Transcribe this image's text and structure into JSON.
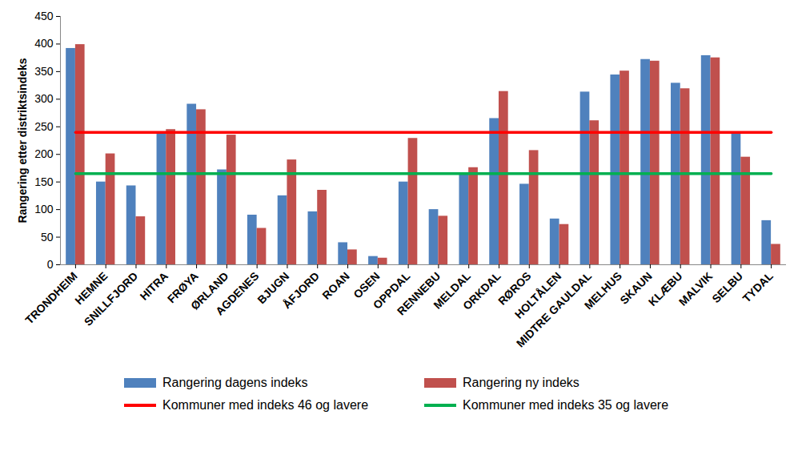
{
  "chart_data": {
    "type": "bar",
    "ylabel": "Rangering etter distriktsindeks",
    "categories": [
      "TRONDHEIM",
      "HEMNE",
      "SNILLFJORD",
      "HITRA",
      "FRØYA",
      "ØRLAND",
      "AGDENES",
      "BJUGN",
      "ÅFJORD",
      "ROAN",
      "OSEN",
      "OPPDAL",
      "RENNEBU",
      "MELDAL",
      "ORKDAL",
      "RØROS",
      "HOLTÅLEN",
      "MIDTRE GAULDAL",
      "MELHUS",
      "SKAUN",
      "KLÆBU",
      "MALVIK",
      "SELBU",
      "TYDAL"
    ],
    "series": [
      {
        "name": "Rangering dagens indeks",
        "type": "bar",
        "color": "#4F81BD",
        "values": [
          392,
          150,
          143,
          238,
          291,
          172,
          90,
          125,
          96,
          40,
          15,
          150,
          100,
          165,
          265,
          146,
          83,
          313,
          344,
          372,
          329,
          379,
          240,
          80
        ]
      },
      {
        "name": "Rangering ny indeks",
        "type": "bar",
        "color": "#C0504D",
        "values": [
          399,
          201,
          87,
          245,
          281,
          235,
          66,
          190,
          135,
          27,
          12,
          229,
          88,
          176,
          314,
          207,
          73,
          261,
          351,
          369,
          319,
          375,
          195,
          37
        ]
      },
      {
        "name": "Kommuner med indeks 46 og lavere",
        "type": "line",
        "color": "#FF0000",
        "values": [
          240,
          240,
          240,
          240,
          240,
          240,
          240,
          240,
          240,
          240,
          240,
          240,
          240,
          240,
          240,
          240,
          240,
          240,
          240,
          240,
          240,
          240,
          240,
          240
        ]
      },
      {
        "name": "Kommuner med indeks 35 og lavere",
        "type": "line",
        "color": "#00B050",
        "values": [
          165,
          165,
          165,
          165,
          165,
          165,
          165,
          165,
          165,
          165,
          165,
          165,
          165,
          165,
          165,
          165,
          165,
          165,
          165,
          165,
          165,
          165,
          165,
          165
        ]
      }
    ],
    "ylim": [
      0,
      450
    ],
    "yticks": [
      0,
      50,
      100,
      150,
      200,
      250,
      300,
      350,
      400,
      450
    ],
    "grid": false,
    "legend": "bottom"
  }
}
